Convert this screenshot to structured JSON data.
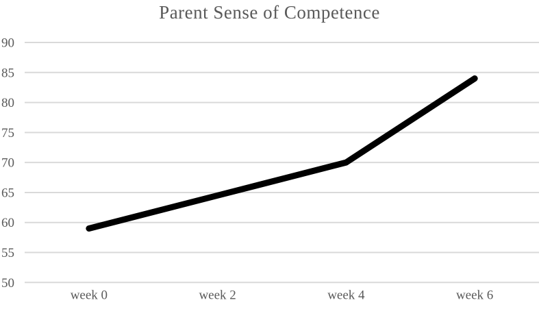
{
  "chart_data": {
    "type": "line",
    "title": "Parent Sense of Competence",
    "categories": [
      "week 0",
      "week 2",
      "week 4",
      "week 6"
    ],
    "series": [
      {
        "name": "Parent Sense of Competence",
        "values": [
          59,
          64.5,
          70,
          84
        ]
      }
    ],
    "xlabel": "",
    "ylabel": "",
    "ylim": [
      50,
      90
    ],
    "yticks": [
      50,
      55,
      60,
      65,
      70,
      75,
      80,
      85,
      90
    ],
    "grid": "horizontal",
    "legend": "none",
    "line_width": 9,
    "colors": {
      "line": "#000000",
      "gridline": "#d9d9d9",
      "tick_label": "#595959",
      "title": "#595959",
      "background": "#ffffff"
    }
  }
}
